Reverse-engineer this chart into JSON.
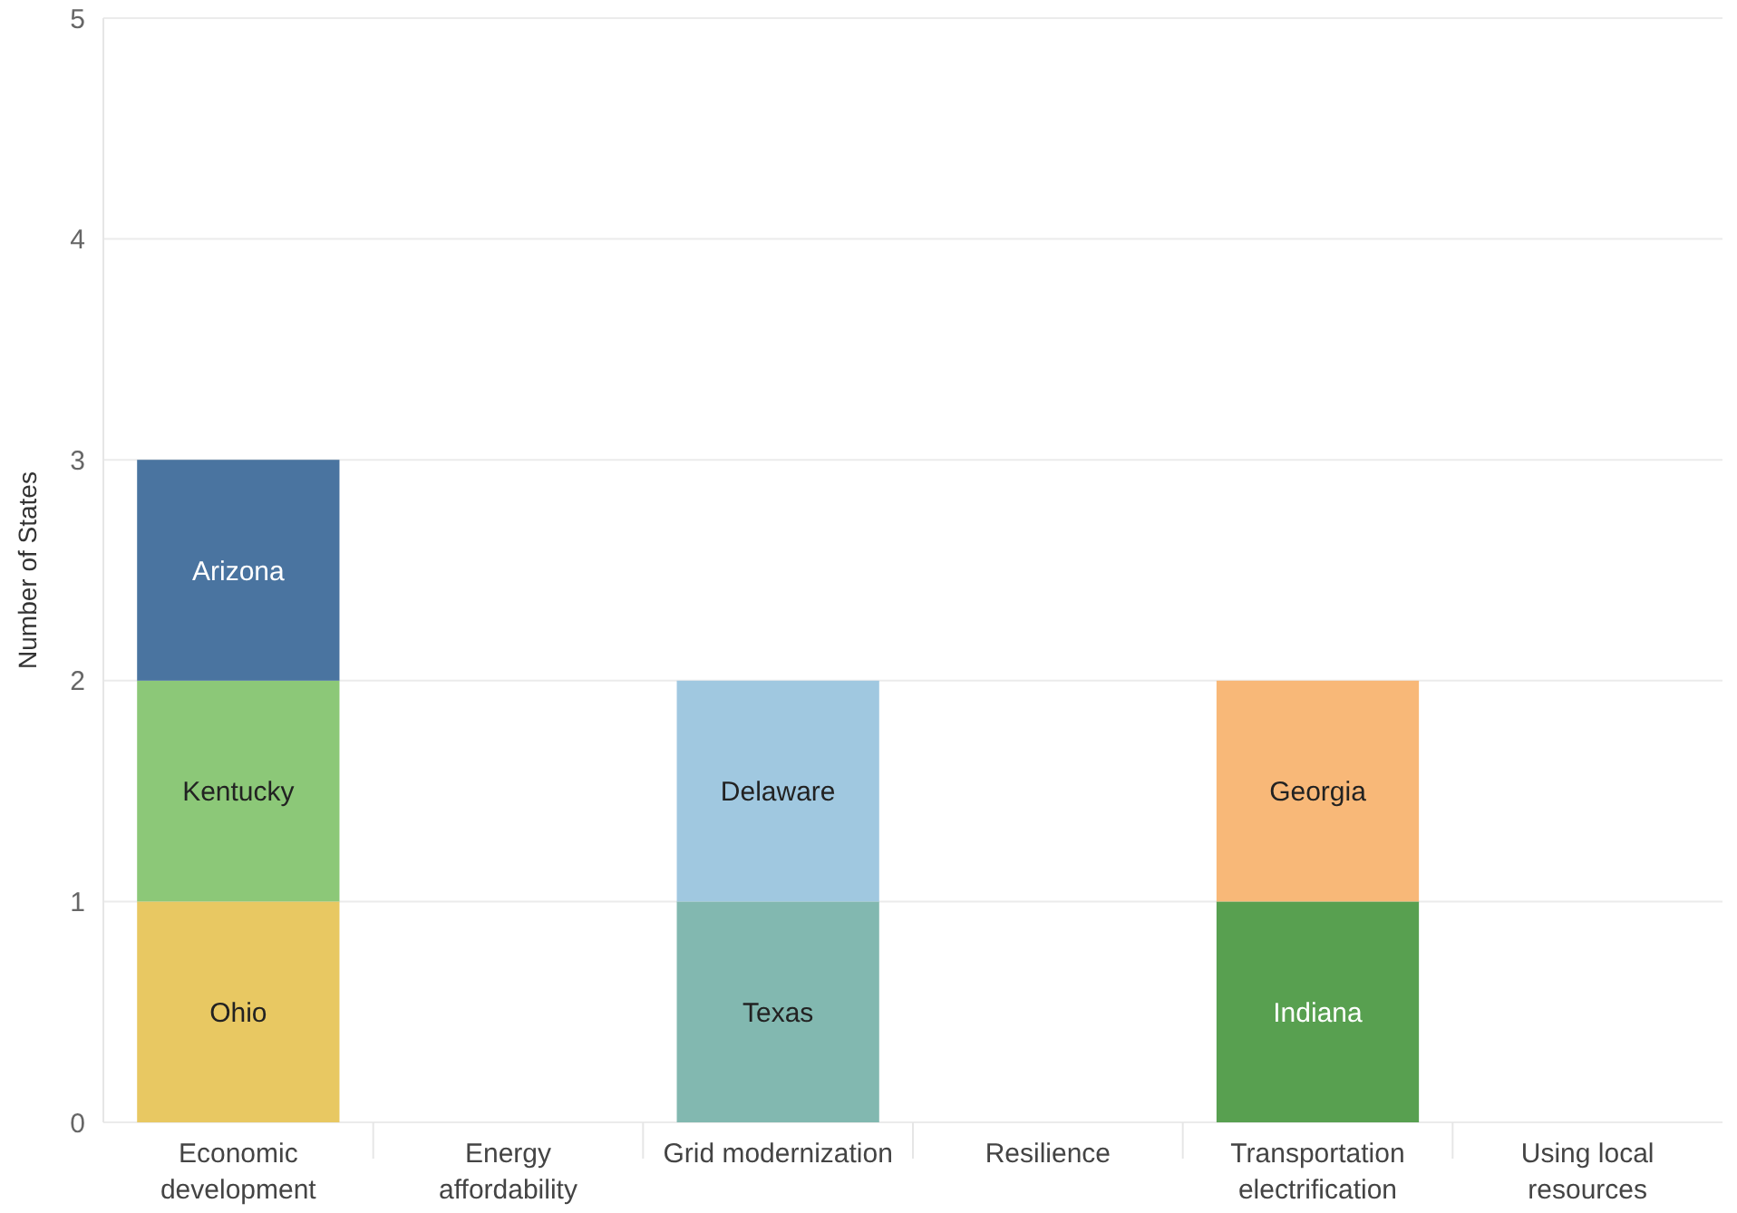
{
  "chart_data": {
    "type": "bar",
    "stacked": true,
    "ylabel": "Number of States",
    "categories": [
      "Economic development",
      "Energy affordability",
      "Grid modernization",
      "Resilience",
      "Transportation electrification",
      "Using local resources"
    ],
    "series": [
      {
        "name": "Ohio",
        "color": "#e8c862",
        "values": [
          1,
          null,
          null,
          null,
          null,
          null
        ]
      },
      {
        "name": "Kentucky",
        "color": "#8cc878",
        "values": [
          1,
          null,
          null,
          null,
          null,
          null
        ]
      },
      {
        "name": "Arizona",
        "color": "#4a74a0",
        "values": [
          1,
          null,
          null,
          null,
          null,
          null
        ]
      },
      {
        "name": "Texas",
        "color": "#82b8b0",
        "values": [
          null,
          null,
          1,
          null,
          null,
          null
        ]
      },
      {
        "name": "Delaware",
        "color": "#a0c8e0",
        "values": [
          null,
          null,
          1,
          null,
          null,
          null
        ]
      },
      {
        "name": "Indiana",
        "color": "#58a050",
        "values": [
          null,
          null,
          null,
          null,
          1,
          null
        ]
      },
      {
        "name": "Georgia",
        "color": "#f8b878",
        "values": [
          null,
          null,
          null,
          null,
          1,
          null
        ]
      }
    ],
    "ylim": [
      0,
      5
    ],
    "yticks": [
      0,
      1,
      2,
      3,
      4,
      5
    ],
    "grid": "y"
  }
}
